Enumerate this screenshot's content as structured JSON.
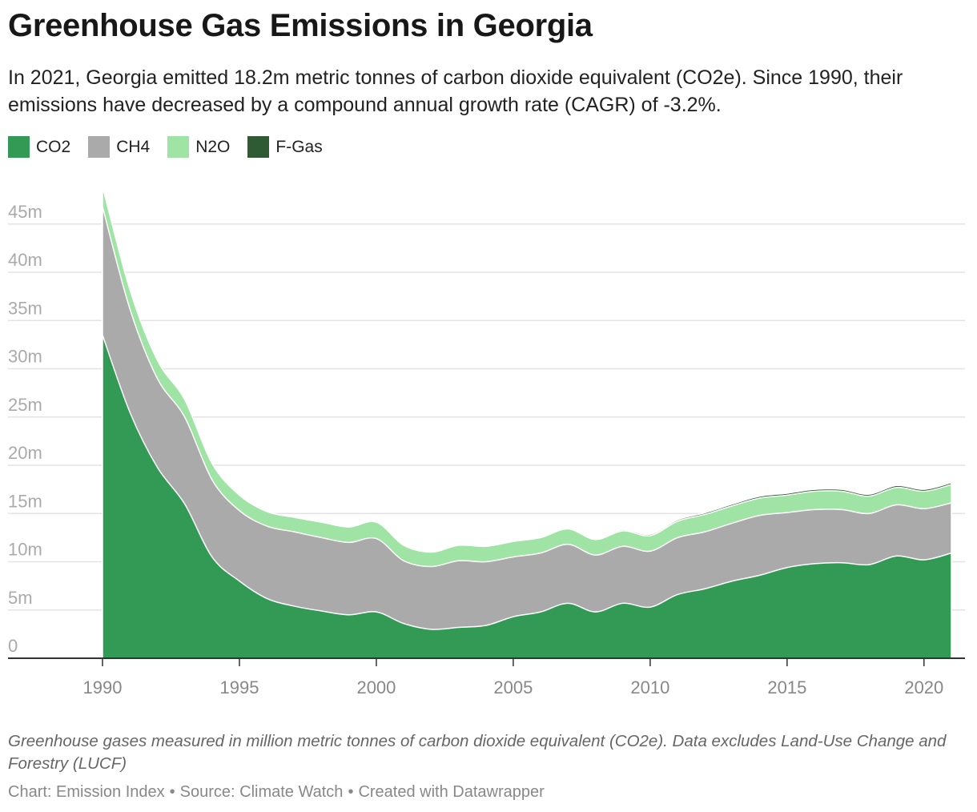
{
  "header": {
    "title": "Greenhouse Gas Emissions in Georgia",
    "subtitle": "In 2021, Georgia emitted 18.2m metric tonnes of carbon dioxide equivalent (CO2e). Since 1990, their emissions have decreased by a compound annual growth rate (CAGR) of -3.2%."
  },
  "legend": [
    {
      "label": "CO2",
      "color": "#339a56"
    },
    {
      "label": "CH4",
      "color": "#aaaaaa"
    },
    {
      "label": "N2O",
      "color": "#9fe3a5"
    },
    {
      "label": "F-Gas",
      "color": "#2f5a33"
    }
  ],
  "footer": {
    "notes": "Greenhouse gases measured in million metric tonnes of carbon dioxide equivalent (CO2e). Data excludes Land-Use Change and Forestry (LUCF)",
    "chart_credit": "Chart: Emission Index",
    "source": "Source: Climate Watch",
    "created": "Created with Datawrapper",
    "separator": "•"
  },
  "chart_data": {
    "type": "area",
    "stacked": true,
    "x": [
      1990,
      1991,
      1992,
      1993,
      1994,
      1995,
      1996,
      1997,
      1998,
      1999,
      2000,
      2001,
      2002,
      2003,
      2004,
      2005,
      2006,
      2007,
      2008,
      2009,
      2010,
      2011,
      2012,
      2013,
      2014,
      2015,
      2016,
      2017,
      2018,
      2019,
      2020,
      2021
    ],
    "series": [
      {
        "name": "CO2",
        "color": "#339a56",
        "values": [
          33.5,
          25.5,
          19.8,
          16.0,
          10.5,
          8.0,
          6.2,
          5.4,
          4.9,
          4.5,
          4.8,
          3.6,
          3.0,
          3.2,
          3.4,
          4.3,
          4.8,
          5.7,
          4.8,
          5.7,
          5.3,
          6.6,
          7.2,
          8.0,
          8.6,
          9.4,
          9.8,
          9.9,
          9.7,
          10.6,
          10.2,
          10.9
        ]
      },
      {
        "name": "CH4",
        "color": "#aaaaaa",
        "values": [
          13.3,
          10.7,
          9.2,
          9.0,
          8.0,
          7.3,
          7.5,
          7.7,
          7.6,
          7.5,
          7.6,
          6.5,
          6.5,
          6.9,
          6.6,
          6.2,
          6.1,
          6.1,
          5.9,
          5.9,
          5.8,
          5.9,
          5.9,
          6.0,
          6.2,
          5.7,
          5.6,
          5.5,
          5.3,
          5.3,
          5.3,
          5.2
        ]
      },
      {
        "name": "N2O",
        "color": "#9fe3a5",
        "values": [
          2.1,
          2.0,
          1.9,
          1.8,
          1.7,
          1.6,
          1.5,
          1.5,
          1.6,
          1.6,
          1.7,
          1.6,
          1.5,
          1.6,
          1.6,
          1.6,
          1.6,
          1.6,
          1.6,
          1.6,
          1.6,
          1.7,
          1.8,
          1.8,
          1.8,
          1.8,
          1.9,
          1.9,
          1.8,
          1.8,
          1.8,
          1.9
        ]
      },
      {
        "name": "F-Gas",
        "color": "#2f5a33",
        "values": [
          0,
          0,
          0,
          0,
          0,
          0,
          0,
          0,
          0,
          0,
          0,
          0,
          0,
          0.02,
          0.04,
          0.06,
          0.08,
          0.1,
          0.1,
          0.12,
          0.14,
          0.15,
          0.17,
          0.18,
          0.19,
          0.2,
          0.2,
          0.2,
          0.2,
          0.2,
          0.2,
          0.2
        ]
      }
    ],
    "y_ticks": [
      0,
      5,
      10,
      15,
      20,
      25,
      30,
      35,
      40,
      45
    ],
    "y_tick_labels": [
      "0",
      "5m",
      "10m",
      "15m",
      "20m",
      "25m",
      "30m",
      "35m",
      "40m",
      "45m"
    ],
    "x_ticks": [
      1990,
      1995,
      2000,
      2005,
      2010,
      2015,
      2020
    ],
    "ylim": [
      0,
      50
    ],
    "grid": "horizontal",
    "legend_position": "top-left"
  }
}
